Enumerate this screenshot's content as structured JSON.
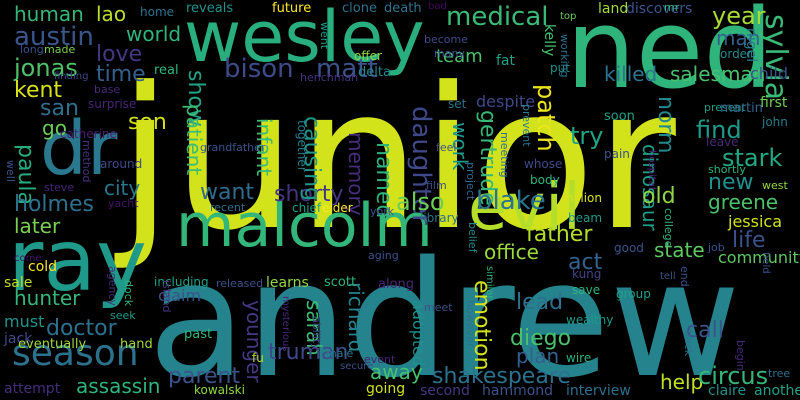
{
  "background": "#000000",
  "words": [
    {
      "text": "junior",
      "color": "#d2e21b"
    },
    {
      "text": "andrew",
      "color": "#25838e"
    },
    {
      "text": "ned",
      "color": "#2fb47c"
    },
    {
      "text": "wesley",
      "color": "#29af7f"
    },
    {
      "text": "ray",
      "color": "#1f9a8a"
    },
    {
      "text": "dr",
      "color": "#2a788e"
    },
    {
      "text": "evil",
      "color": "#b5de2b"
    },
    {
      "text": "malcolm",
      "color": "#33b679"
    },
    {
      "text": "season",
      "color": "#2c728e"
    },
    {
      "text": "sylvia",
      "color": "#3aba76"
    },
    {
      "text": "bison",
      "color": "#3e4a89"
    },
    {
      "text": "matt",
      "color": "#3b528b"
    },
    {
      "text": "jonas",
      "color": "#4fc16b"
    },
    {
      "text": "austin",
      "color": "#39568c"
    },
    {
      "text": "kent",
      "color": "#d8e219"
    },
    {
      "text": "medical",
      "color": "#3aba76"
    },
    {
      "text": "human",
      "color": "#35b779"
    },
    {
      "text": "lao",
      "color": "#bddf26"
    },
    {
      "text": "world",
      "color": "#2fb47c"
    },
    {
      "text": "love",
      "color": "#453882"
    },
    {
      "text": "time",
      "color": "#34608d"
    },
    {
      "text": "show",
      "color": "#20a486"
    },
    {
      "text": "patient",
      "color": "#3dbc74"
    },
    {
      "text": "daughter",
      "color": "#3f4889"
    },
    {
      "text": "gertrude",
      "color": "#37b878"
    },
    {
      "text": "patch",
      "color": "#eae51a"
    },
    {
      "text": "year",
      "color": "#a8db34"
    },
    {
      "text": "man",
      "color": "#35608d"
    },
    {
      "text": "son",
      "color": "#d5e21a"
    },
    {
      "text": "san",
      "color": "#2e6f8e"
    },
    {
      "text": "go",
      "color": "#6ccd5a"
    },
    {
      "text": "killed",
      "color": "#2c738e"
    },
    {
      "text": "salesman",
      "color": "#48c16e"
    },
    {
      "text": "find",
      "color": "#1f9a8a"
    },
    {
      "text": "stark",
      "color": "#22a884"
    },
    {
      "text": "try",
      "color": "#20a486"
    },
    {
      "text": "paula",
      "color": "#25ac82"
    },
    {
      "text": "holmes",
      "color": "#2d708e"
    },
    {
      "text": "city",
      "color": "#2a788e"
    },
    {
      "text": "want",
      "color": "#2f6c8e"
    },
    {
      "text": "shorty",
      "color": "#453581"
    },
    {
      "text": "blake",
      "color": "#2b748e"
    },
    {
      "text": "also",
      "color": "#6ece58"
    },
    {
      "text": "named",
      "color": "#2db27d"
    },
    {
      "text": "memory",
      "color": "#472d7b"
    },
    {
      "text": "causing",
      "color": "#1f988b"
    },
    {
      "text": "infant",
      "color": "#3aba76"
    },
    {
      "text": "norm",
      "color": "#23898e"
    },
    {
      "text": "work",
      "color": "#1f9a8a"
    },
    {
      "text": "dinosaur",
      "color": "#1e9d89"
    },
    {
      "text": "old",
      "color": "#8ed645"
    },
    {
      "text": "new",
      "color": "#218f8d"
    },
    {
      "text": "greene",
      "color": "#4ac16d"
    },
    {
      "text": "jessica",
      "color": "#d2e21b"
    },
    {
      "text": "life",
      "color": "#3b528b"
    },
    {
      "text": "father",
      "color": "#b5de2b"
    },
    {
      "text": "office",
      "color": "#9bd93c"
    },
    {
      "text": "state",
      "color": "#5ec962"
    },
    {
      "text": "act",
      "color": "#33638d"
    },
    {
      "text": "community",
      "color": "#5ec962"
    },
    {
      "text": "later",
      "color": "#7ad151"
    },
    {
      "text": "hunter",
      "color": "#35b779"
    },
    {
      "text": "doctor",
      "color": "#2d718e"
    },
    {
      "text": "richard",
      "color": "#25848e"
    },
    {
      "text": "sarah",
      "color": "#3fbc73"
    },
    {
      "text": "younger",
      "color": "#453882"
    },
    {
      "text": "emotion",
      "color": "#d2e21b"
    },
    {
      "text": "lead",
      "color": "#2d718e"
    },
    {
      "text": "diego",
      "color": "#4ac16d"
    },
    {
      "text": "call",
      "color": "#3b528b"
    },
    {
      "text": "plan",
      "color": "#34608d"
    },
    {
      "text": "truman",
      "color": "#3e4989"
    },
    {
      "text": "shakespeare",
      "color": "#2c728e"
    },
    {
      "text": "away",
      "color": "#46c06f"
    },
    {
      "text": "parent",
      "color": "#3b528b"
    },
    {
      "text": "help",
      "color": "#c2df23"
    },
    {
      "text": "circus",
      "color": "#35b779"
    },
    {
      "text": "assassin",
      "color": "#2fb47c"
    },
    {
      "text": "claim",
      "color": "#3b528b"
    },
    {
      "text": "adopted",
      "color": "#20928c"
    },
    {
      "text": "must",
      "color": "#20928c"
    },
    {
      "text": "jack",
      "color": "#3e4a89"
    },
    {
      "text": "sale",
      "color": "#bddf26"
    },
    {
      "text": "cold",
      "color": "#fde725"
    },
    {
      "text": "eventually",
      "color": "#9fda3a"
    },
    {
      "text": "hand",
      "color": "#9fda3a"
    },
    {
      "text": "attempt",
      "color": "#472d7b"
    },
    {
      "text": "kowalski",
      "color": "#8fd744"
    },
    {
      "text": "going",
      "color": "#d0e11c"
    },
    {
      "text": "second",
      "color": "#453882"
    },
    {
      "text": "hammond",
      "color": "#3b528b"
    },
    {
      "text": "interview",
      "color": "#2d708e"
    },
    {
      "text": "claire",
      "color": "#20928c"
    },
    {
      "text": "another",
      "color": "#1fa088"
    },
    {
      "text": "team",
      "color": "#4ac16d"
    },
    {
      "text": "fat",
      "color": "#1fa088"
    },
    {
      "text": "despite",
      "color": "#3f4889"
    },
    {
      "text": "kelly",
      "color": "#46c06f"
    },
    {
      "text": "nigel",
      "color": "#2a788e"
    },
    {
      "text": "child",
      "color": "#3b528b"
    },
    {
      "text": "first",
      "color": "#6ece58"
    },
    {
      "text": "land",
      "color": "#a0da39"
    },
    {
      "text": "discovers",
      "color": "#3a548c"
    },
    {
      "text": "future",
      "color": "#fde725"
    },
    {
      "text": "clone",
      "color": "#2c728e"
    },
    {
      "text": "death",
      "color": "#2c728e"
    },
    {
      "text": "reveals",
      "color": "#20928c"
    },
    {
      "text": "home",
      "color": "#2c728e"
    },
    {
      "text": "real",
      "color": "#2fb47c"
    },
    {
      "text": "offer",
      "color": "#8ed645"
    },
    {
      "text": "delta",
      "color": "#24868e"
    },
    {
      "text": "become",
      "color": "#3e4a89"
    },
    {
      "text": "many",
      "color": "#3e4989"
    },
    {
      "text": "put",
      "color": "#20928c"
    },
    {
      "text": "order",
      "color": "#23898e"
    },
    {
      "text": "surprise",
      "color": "#482475"
    },
    {
      "text": "catherine",
      "color": "#481f70"
    },
    {
      "text": "grandfather",
      "color": "#3b528b"
    },
    {
      "text": "together",
      "color": "#27808e"
    },
    {
      "text": "set",
      "color": "#2c728e"
    },
    {
      "text": "project",
      "color": "#31688e"
    },
    {
      "text": "meeting",
      "color": "#2f6c8e"
    },
    {
      "text": "soon",
      "color": "#1fa088"
    },
    {
      "text": "present",
      "color": "#1f9a8a"
    },
    {
      "text": "martin",
      "color": "#33638d"
    },
    {
      "text": "john",
      "color": "#287d8e"
    },
    {
      "text": "leave",
      "color": "#482878"
    },
    {
      "text": "shortly",
      "color": "#2db27d"
    },
    {
      "text": "around",
      "color": "#3e4989"
    },
    {
      "text": "steve",
      "color": "#482475"
    },
    {
      "text": "yacht",
      "color": "#471365"
    },
    {
      "text": "recent",
      "color": "#2d708e"
    },
    {
      "text": "chief",
      "color": "#1fa088"
    },
    {
      "text": "elder",
      "color": "#fde725"
    },
    {
      "text": "york",
      "color": "#3b528b"
    },
    {
      "text": "library",
      "color": "#2d718e"
    },
    {
      "text": "film",
      "color": "#3e4989"
    },
    {
      "text": "whose",
      "color": "#3e4989"
    },
    {
      "text": "body",
      "color": "#2fb47c"
    },
    {
      "text": "million",
      "color": "#d8e219"
    },
    {
      "text": "beam",
      "color": "#1f9a8a"
    },
    {
      "text": "pain",
      "color": "#3b528b"
    },
    {
      "text": "west",
      "color": "#95d840"
    },
    {
      "text": "including",
      "color": "#1fa088"
    },
    {
      "text": "released",
      "color": "#3b528b"
    },
    {
      "text": "learns",
      "color": "#8ed645"
    },
    {
      "text": "scott",
      "color": "#2fb47c"
    },
    {
      "text": "along",
      "color": "#482878"
    },
    {
      "text": "good",
      "color": "#3b528b"
    },
    {
      "text": "kung",
      "color": "#414487"
    },
    {
      "text": "job",
      "color": "#3a548c"
    },
    {
      "text": "save",
      "color": "#2fb47c"
    },
    {
      "text": "group",
      "color": "#1fa088"
    },
    {
      "text": "wealthy",
      "color": "#1f9a8a"
    },
    {
      "text": "wire",
      "color": "#2db27d"
    },
    {
      "text": "past",
      "color": "#2fb47c"
    },
    {
      "text": "fu",
      "color": "#b5de2b"
    },
    {
      "text": "event",
      "color": "#481f70"
    },
    {
      "text": "male",
      "color": "#2c728e"
    },
    {
      "text": "secure",
      "color": "#3b528b"
    },
    {
      "text": "seek",
      "color": "#1f9a8a"
    },
    {
      "text": "well",
      "color": "#3b528b"
    },
    {
      "text": "method",
      "color": "#46327e"
    },
    {
      "text": "base",
      "color": "#482878"
    },
    {
      "text": "long",
      "color": "#3b528b"
    },
    {
      "text": "made",
      "color": "#7ad151"
    },
    {
      "text": "finding",
      "color": "#3e4a89"
    },
    {
      "text": "henchman",
      "color": "#46327e"
    },
    {
      "text": "bad",
      "color": "#46085c"
    },
    {
      "text": "top",
      "color": "#6ccd5a"
    },
    {
      "text": "mr",
      "color": "#2fb47c"
    },
    {
      "text": "went",
      "color": "#1fa088"
    },
    {
      "text": "working",
      "color": "#2d708e"
    },
    {
      "text": "prevent",
      "color": "#2a788e"
    },
    {
      "text": "feel",
      "color": "#3b528b"
    },
    {
      "text": "aging",
      "color": "#3b528b"
    },
    {
      "text": "belief",
      "color": "#23898e"
    },
    {
      "text": "college",
      "color": "#2fb47c"
    },
    {
      "text": "hospital",
      "color": "#482878"
    },
    {
      "text": "island",
      "color": "#46327e"
    },
    {
      "text": "dock",
      "color": "#2fb47c"
    },
    {
      "text": "agency",
      "color": "#46327e"
    },
    {
      "text": "come",
      "color": "#471365"
    },
    {
      "text": "ability",
      "color": "#414487"
    },
    {
      "text": "mysterious",
      "color": "#482878"
    },
    {
      "text": "however",
      "color": "#2d718e"
    },
    {
      "text": "meet",
      "color": "#3b528b"
    },
    {
      "text": "similar",
      "color": "#2fb47c"
    },
    {
      "text": "end",
      "color": "#3b528b"
    },
    {
      "text": "tell",
      "color": "#3b528b"
    },
    {
      "text": "back",
      "color": "#2d708e"
    },
    {
      "text": "begin",
      "color": "#482878"
    },
    {
      "text": "field",
      "color": "#3b528b"
    },
    {
      "text": "tree",
      "color": "#2d718e"
    }
  ]
}
